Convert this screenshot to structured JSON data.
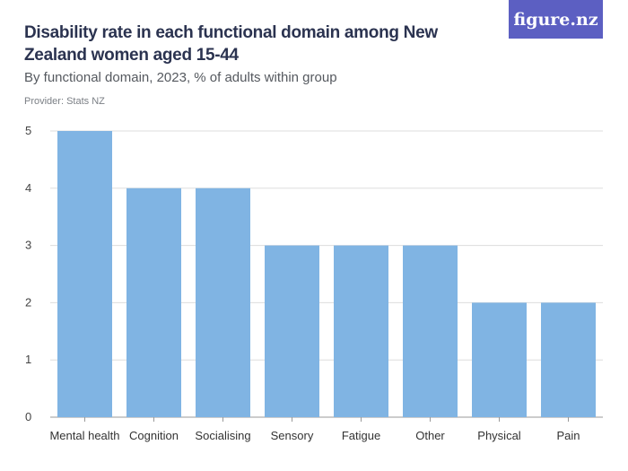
{
  "header": {
    "title": "Disability rate in each functional domain among New Zealand women aged 15-44",
    "subtitle": "By functional domain, 2023, % of adults within group",
    "provider": "Provider: Stats NZ",
    "logo": "figure.nz"
  },
  "colors": {
    "bar": "#80b4e3",
    "grid": "#dddddd",
    "logo_bg": "#5c5fc2"
  },
  "chart_data": {
    "type": "bar",
    "categories": [
      "Mental health",
      "Cognition",
      "Socialising",
      "Sensory",
      "Fatigue",
      "Other",
      "Physical",
      "Pain"
    ],
    "values": [
      5,
      4,
      4,
      3,
      3,
      3,
      2,
      2
    ],
    "ylim": [
      0,
      5
    ],
    "yticks": [
      0,
      1,
      2,
      3,
      4,
      5
    ],
    "grid": true
  }
}
